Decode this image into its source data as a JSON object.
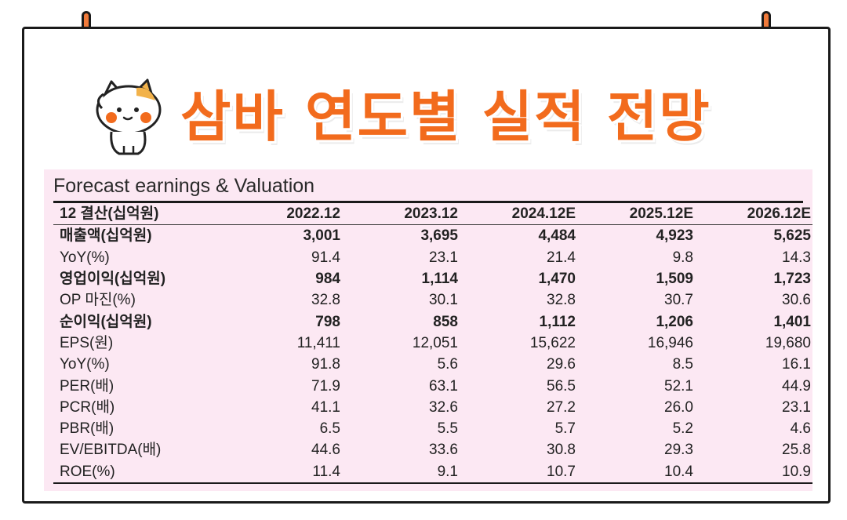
{
  "headline": "삼바 연도별 실적 전망",
  "table": {
    "title": "Forecast earnings & Valuation",
    "header": [
      "12 결산(십억원)",
      "2022.12",
      "2023.12",
      "2024.12E",
      "2025.12E",
      "2026.12E"
    ],
    "rows": [
      {
        "label": "매출액(십억원)",
        "values": [
          "3,001",
          "3,695",
          "4,484",
          "4,923",
          "5,625"
        ],
        "bold": true
      },
      {
        "label": "YoY(%)",
        "values": [
          "91.4",
          "23.1",
          "21.4",
          "9.8",
          "14.3"
        ],
        "bold": false
      },
      {
        "label": "영업이익(십억원)",
        "values": [
          "984",
          "1,114",
          "1,470",
          "1,509",
          "1,723"
        ],
        "bold": true
      },
      {
        "label": "OP 마진(%)",
        "values": [
          "32.8",
          "30.1",
          "32.8",
          "30.7",
          "30.6"
        ],
        "bold": false
      },
      {
        "label": "순이익(십억원)",
        "values": [
          "798",
          "858",
          "1,112",
          "1,206",
          "1,401"
        ],
        "bold": true
      },
      {
        "label": "EPS(원)",
        "values": [
          "11,411",
          "12,051",
          "15,622",
          "16,946",
          "19,680"
        ],
        "bold": false
      },
      {
        "label": "YoY(%)",
        "values": [
          "91.8",
          "5.6",
          "29.6",
          "8.5",
          "16.1"
        ],
        "bold": false
      },
      {
        "label": "PER(배)",
        "values": [
          "71.9",
          "63.1",
          "56.5",
          "52.1",
          "44.9"
        ],
        "bold": false
      },
      {
        "label": "PCR(배)",
        "values": [
          "41.1",
          "32.6",
          "27.2",
          "26.0",
          "23.1"
        ],
        "bold": false
      },
      {
        "label": "PBR(배)",
        "values": [
          "6.5",
          "5.5",
          "5.7",
          "5.2",
          "4.6"
        ],
        "bold": false
      },
      {
        "label": "EV/EBITDA(배)",
        "values": [
          "44.6",
          "33.6",
          "30.8",
          "29.3",
          "25.8"
        ],
        "bold": false
      },
      {
        "label": "ROE(%)",
        "values": [
          "11.4",
          "9.1",
          "10.7",
          "10.4",
          "10.9"
        ],
        "bold": false
      }
    ]
  },
  "colors": {
    "accent": "#f26b1d",
    "panel": "#fce8f3",
    "pin": "#f07a3a"
  },
  "icons": [
    "pin-icon",
    "cat-mascot-icon"
  ]
}
